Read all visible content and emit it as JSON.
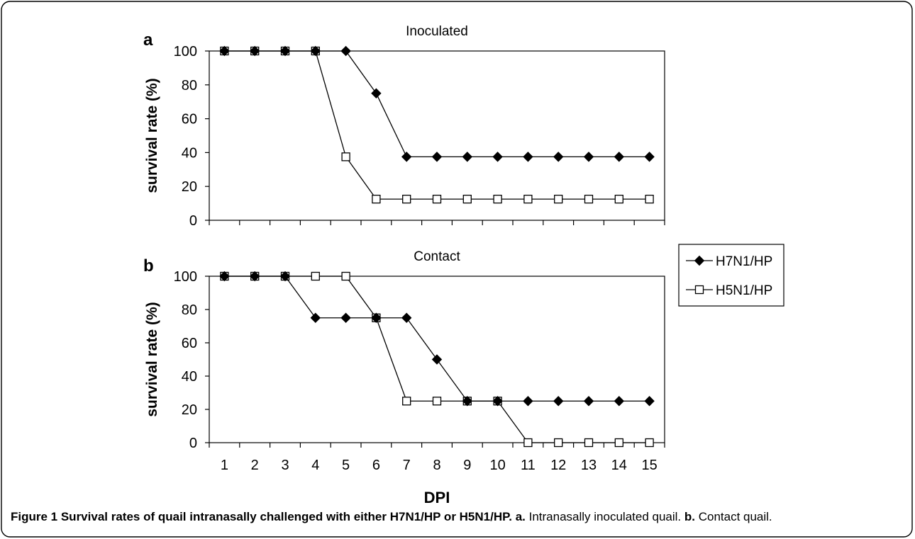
{
  "chart_data": [
    {
      "panel_letter": "a",
      "type": "line",
      "title": "Inoculated",
      "xlabel": "",
      "ylabel": "survival rate (%)",
      "x": [
        1,
        2,
        3,
        4,
        5,
        6,
        7,
        8,
        9,
        10,
        11,
        12,
        13,
        14,
        15
      ],
      "xlim": [
        0.5,
        15.5
      ],
      "ylim": [
        0,
        100
      ],
      "yticks": [
        0,
        20,
        40,
        60,
        80,
        100
      ],
      "series": [
        {
          "name": "H7N1/HP",
          "x": [
            1,
            2,
            3,
            4,
            5,
            6,
            7,
            8,
            9,
            10,
            11,
            12,
            13,
            14,
            15
          ],
          "values": [
            100,
            100,
            100,
            100,
            100,
            75,
            37.5,
            37.5,
            37.5,
            37.5,
            37.5,
            37.5,
            37.5,
            37.5,
            37.5
          ],
          "marker": "filled-diamond",
          "color": "#000000"
        },
        {
          "name": "H5N1/HP",
          "x": [
            1,
            2,
            3,
            4,
            5,
            6,
            7,
            8,
            9,
            10,
            11,
            12,
            13,
            14,
            15
          ],
          "values": [
            100,
            100,
            100,
            100,
            37.5,
            12.5,
            12.5,
            12.5,
            12.5,
            12.5,
            12.5,
            12.5,
            12.5,
            12.5,
            12.5
          ],
          "marker": "open-square",
          "color": "#000000"
        }
      ]
    },
    {
      "panel_letter": "b",
      "type": "line",
      "title": "Contact",
      "xlabel": "DPI",
      "ylabel": "survival rate (%)",
      "x": [
        1,
        2,
        3,
        4,
        5,
        6,
        7,
        8,
        9,
        10,
        11,
        12,
        13,
        14,
        15
      ],
      "xticklabels": [
        "1",
        "2",
        "3",
        "4",
        "5",
        "6",
        "7",
        "8",
        "9",
        "10",
        "11",
        "12",
        "13",
        "14",
        "15"
      ],
      "xlim": [
        0.5,
        15.5
      ],
      "ylim": [
        0,
        100
      ],
      "yticks": [
        0,
        20,
        40,
        60,
        80,
        100
      ],
      "series": [
        {
          "name": "H7N1/HP",
          "x": [
            1,
            2,
            3,
            4,
            5,
            6,
            7,
            8,
            9,
            10,
            11,
            12,
            13,
            14,
            15
          ],
          "values": [
            100,
            100,
            100,
            75,
            75,
            75,
            75,
            50,
            25,
            25,
            25,
            25,
            25,
            25,
            25
          ],
          "marker": "filled-diamond",
          "color": "#000000"
        },
        {
          "name": "H5N1/HP",
          "x": [
            1,
            2,
            3,
            4,
            5,
            6,
            7,
            8,
            9,
            10,
            11,
            12,
            13,
            14,
            15
          ],
          "values": [
            100,
            100,
            100,
            100,
            100,
            75,
            25,
            25,
            25,
            25,
            0,
            0,
            0,
            0,
            0
          ],
          "marker": "open-square",
          "color": "#000000"
        }
      ]
    }
  ],
  "legend": {
    "placement": "right, between panels",
    "entries": [
      {
        "label": "H7N1/HP",
        "marker": "filled-diamond"
      },
      {
        "label": "H5N1/HP",
        "marker": "open-square"
      }
    ]
  },
  "caption": {
    "bold_text": "Figure 1 Survival rates of quail intranasally challenged with either H7N1/HP or H5N1/HP. a.",
    "text_a": " Intranasally inoculated quail. ",
    "bold_b": "b.",
    "text_b": " Contact quail."
  }
}
